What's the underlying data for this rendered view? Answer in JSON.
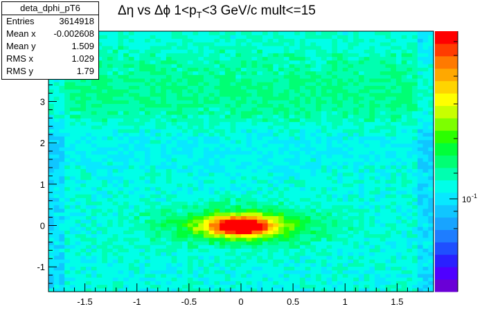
{
  "chart_data": {
    "type": "heatmap",
    "title_parts": [
      "Δη vs Δϕ 1<p",
      "T",
      "<3 GeV/c mult<=15"
    ],
    "xlabel": "",
    "ylabel": "",
    "xlim": [
      -1.85,
      1.85
    ],
    "ylim": [
      -1.6,
      4.7
    ],
    "x_ticks": [
      -1.5,
      -1,
      -0.5,
      0,
      0.5,
      1,
      1.5
    ],
    "x_tick_labels": [
      "-1.5",
      "-1",
      "-0.5",
      "0",
      "0.5",
      "1",
      "1.5"
    ],
    "y_ticks": [
      -1,
      0,
      1,
      2,
      3
    ],
    "y_tick_labels": [
      "-1",
      "0",
      "1",
      "2",
      "3"
    ],
    "colorbar": {
      "scale": "log",
      "label_value": 0.1,
      "label": "10",
      "label_exp": "-1"
    },
    "colormap": [
      "#6a00d6",
      "#4f00ff",
      "#2a20ff",
      "#1f4fff",
      "#1e7dff",
      "#18a4ff",
      "#10c6ff",
      "#08e8ff",
      "#00ffe8",
      "#00ffb0",
      "#00ff74",
      "#00ff3a",
      "#2bff00",
      "#7dff00",
      "#c8ff00",
      "#ffff00",
      "#ffd400",
      "#ffa800",
      "#ff7a00",
      "#ff3c00",
      "#ff0000"
    ],
    "features": [
      {
        "name": "near-side peak",
        "dphi": 0.0,
        "deta": 0.0,
        "level": "max"
      },
      {
        "name": "away-side ridge",
        "dphi": 3.14,
        "deta": "all",
        "level": "low"
      },
      {
        "name": "acceptance edges",
        "deta": [
          -1.8,
          1.8
        ],
        "level": "reduced"
      }
    ],
    "grid": false
  },
  "stats": {
    "title": "deta_dphi_pT6",
    "rows": [
      {
        "label": "Entries",
        "value": "3614918"
      },
      {
        "label": "Mean x",
        "value": "-0.002608"
      },
      {
        "label": "Mean y",
        "value": "1.509"
      },
      {
        "label": "RMS x",
        "value": "1.029"
      },
      {
        "label": "RMS y",
        "value": "1.79"
      }
    ]
  }
}
